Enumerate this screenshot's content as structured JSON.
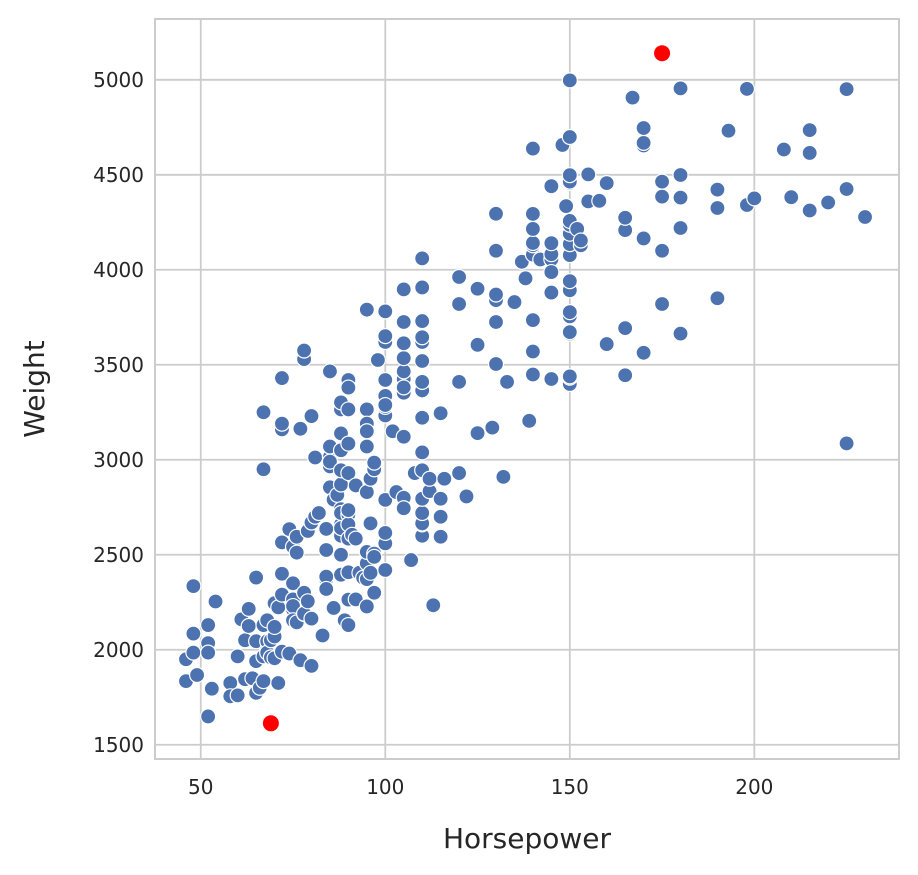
{
  "chart_data": {
    "type": "scatter",
    "xlabel": "Horsepower",
    "ylabel": "Weight",
    "xlim": [
      37.6,
      239.2
    ],
    "ylim": [
      1425,
      5320
    ],
    "x_ticks": [
      50,
      100,
      150,
      200
    ],
    "y_ticks": [
      1500,
      2000,
      2500,
      3000,
      3500,
      4000,
      4500,
      5000
    ],
    "grid": true,
    "colors": {
      "points": "#4c72b0",
      "highlight": "#ff0000",
      "grid": "#cccccc",
      "text": "#262626"
    },
    "series": [
      {
        "color": "#4c72b0",
        "points": [
          [
            46,
            1835
          ],
          [
            46,
            1950
          ],
          [
            48,
            2335
          ],
          [
            48,
            2085
          ],
          [
            48,
            1985
          ],
          [
            49,
            1867
          ],
          [
            52,
            2130
          ],
          [
            52,
            2035
          ],
          [
            52,
            1985
          ],
          [
            52,
            1649
          ],
          [
            53,
            1795
          ],
          [
            54,
            2254
          ],
          [
            58,
            1825
          ],
          [
            58,
            1755
          ],
          [
            60,
            1760
          ],
          [
            60,
            1965
          ],
          [
            61,
            2160
          ],
          [
            62,
            2050
          ],
          [
            62,
            1845
          ],
          [
            63,
            2125
          ],
          [
            63,
            2215
          ],
          [
            64,
            1850
          ],
          [
            65,
            2380
          ],
          [
            65,
            2045
          ],
          [
            65,
            1940
          ],
          [
            65,
            1773
          ],
          [
            66,
            1800
          ],
          [
            67,
            1965
          ],
          [
            67,
            1835
          ],
          [
            67,
            2130
          ],
          [
            67,
            3250
          ],
          [
            67,
            2950
          ],
          [
            68,
            2000
          ],
          [
            68,
            2045
          ],
          [
            68,
            2155
          ],
          [
            68,
            1985
          ],
          [
            69,
            2050
          ],
          [
            69,
            1960
          ],
          [
            70,
            2070
          ],
          [
            70,
            2120
          ],
          [
            70,
            2245
          ],
          [
            70,
            1955
          ],
          [
            71,
            2223
          ],
          [
            71,
            1825
          ],
          [
            72,
            3430
          ],
          [
            72,
            3160
          ],
          [
            72,
            2565
          ],
          [
            72,
            2400
          ],
          [
            72,
            2290
          ],
          [
            72,
            1990
          ],
          [
            72,
            3190
          ],
          [
            74,
            2635
          ],
          [
            74,
            1980
          ],
          [
            75,
            2212
          ],
          [
            75,
            2542
          ],
          [
            75,
            2350
          ],
          [
            75,
            2265
          ],
          [
            75,
            2230
          ],
          [
            75,
            2155
          ],
          [
            76,
            2511
          ],
          [
            76,
            2595
          ],
          [
            76,
            2144
          ],
          [
            77,
            1945
          ],
          [
            77,
            3163
          ],
          [
            78,
            2300
          ],
          [
            78,
            2188
          ],
          [
            78,
            2190
          ],
          [
            78,
            3530
          ],
          [
            78,
            3575
          ],
          [
            79,
            2255
          ],
          [
            79,
            2625
          ],
          [
            80,
            2164
          ],
          [
            80,
            2670
          ],
          [
            80,
            3230
          ],
          [
            80,
            1915
          ],
          [
            81,
            3012
          ],
          [
            81,
            2700
          ],
          [
            82,
            2720
          ],
          [
            83,
            2075
          ],
          [
            84,
            2370
          ],
          [
            84,
            2385
          ],
          [
            84,
            2525
          ],
          [
            84,
            2636
          ],
          [
            84,
            2320
          ],
          [
            85,
            2855
          ],
          [
            85,
            2965
          ],
          [
            85,
            3015
          ],
          [
            85,
            3070
          ],
          [
            85,
            2990
          ],
          [
            85,
            3465
          ],
          [
            86,
            2220
          ],
          [
            86,
            2790
          ],
          [
            87,
            2815
          ],
          [
            88,
            2500
          ],
          [
            88,
            2660
          ],
          [
            88,
            2600
          ],
          [
            88,
            2740
          ],
          [
            88,
            2870
          ],
          [
            88,
            3139
          ],
          [
            88,
            3265
          ],
          [
            88,
            3302
          ],
          [
            88,
            3050
          ],
          [
            88,
            2720
          ],
          [
            88,
            2945
          ],
          [
            88,
            2395
          ],
          [
            88,
            2640
          ],
          [
            89,
            2155
          ],
          [
            90,
            2264
          ],
          [
            90,
            2930
          ],
          [
            90,
            3085
          ],
          [
            90,
            3265
          ],
          [
            90,
            3420
          ],
          [
            90,
            3380
          ],
          [
            90,
            2711
          ],
          [
            90,
            2660
          ],
          [
            90,
            2735
          ],
          [
            90,
            2408
          ],
          [
            90,
            2130
          ],
          [
            90,
            2585
          ],
          [
            91,
            2605
          ],
          [
            92,
            2585
          ],
          [
            92,
            2265
          ],
          [
            92,
            2865
          ],
          [
            93,
            2405
          ],
          [
            94,
            2379
          ],
          [
            95,
            2455
          ],
          [
            95,
            2372
          ],
          [
            95,
            2228
          ],
          [
            95,
            2515
          ],
          [
            95,
            2830
          ],
          [
            95,
            3265
          ],
          [
            95,
            3190
          ],
          [
            95,
            3150
          ],
          [
            95,
            3070
          ],
          [
            95,
            3790
          ],
          [
            96,
            2665
          ],
          [
            96,
            2900
          ],
          [
            96,
            2405
          ],
          [
            97,
            2506
          ],
          [
            97,
            2489
          ],
          [
            97,
            2300
          ],
          [
            97,
            2950
          ],
          [
            97,
            2985
          ],
          [
            98,
            3525
          ],
          [
            100,
            2789
          ],
          [
            100,
            2560
          ],
          [
            100,
            2420
          ],
          [
            100,
            3420
          ],
          [
            100,
            3336
          ],
          [
            100,
            3233
          ],
          [
            100,
            3278
          ],
          [
            100,
            3288
          ],
          [
            100,
            3620
          ],
          [
            100,
            3651
          ],
          [
            100,
            3781
          ],
          [
            100,
            2615
          ],
          [
            102,
            3150
          ],
          [
            103,
            2830
          ],
          [
            105,
            2800
          ],
          [
            105,
            3121
          ],
          [
            105,
            3353
          ],
          [
            105,
            3425
          ],
          [
            105,
            3465
          ],
          [
            105,
            3535
          ],
          [
            105,
            3613
          ],
          [
            105,
            3725
          ],
          [
            105,
            3897
          ],
          [
            105,
            2745
          ],
          [
            105,
            3381
          ],
          [
            107,
            2472
          ],
          [
            108,
            2930
          ],
          [
            110,
            2600
          ],
          [
            110,
            2660
          ],
          [
            110,
            2665
          ],
          [
            110,
            2720
          ],
          [
            110,
            2795
          ],
          [
            110,
            2945
          ],
          [
            110,
            3039
          ],
          [
            110,
            3221
          ],
          [
            110,
            3365
          ],
          [
            110,
            3410
          ],
          [
            110,
            3520
          ],
          [
            110,
            3620
          ],
          [
            110,
            3645
          ],
          [
            110,
            3730
          ],
          [
            110,
            3907
          ],
          [
            110,
            4060
          ],
          [
            112,
            2835
          ],
          [
            112,
            2900
          ],
          [
            113,
            2234
          ],
          [
            115,
            2595
          ],
          [
            115,
            2700
          ],
          [
            115,
            2795
          ],
          [
            115,
            3245
          ],
          [
            116,
            2900
          ],
          [
            120,
            2930
          ],
          [
            120,
            3410
          ],
          [
            120,
            3820
          ],
          [
            120,
            3962
          ],
          [
            122,
            2807
          ],
          [
            125,
            3140
          ],
          [
            125,
            3605
          ],
          [
            125,
            3900
          ],
          [
            129,
            3169
          ],
          [
            130,
            3725
          ],
          [
            130,
            3840
          ],
          [
            130,
            3870
          ],
          [
            130,
            4100
          ],
          [
            130,
            4295
          ],
          [
            130,
            3504
          ],
          [
            132,
            2910
          ],
          [
            133,
            3410
          ],
          [
            135,
            3830
          ],
          [
            137,
            4042
          ],
          [
            138,
            3955
          ],
          [
            139,
            3205
          ],
          [
            140,
            3449
          ],
          [
            140,
            3570
          ],
          [
            140,
            3735
          ],
          [
            140,
            4080
          ],
          [
            140,
            4129
          ],
          [
            140,
            4141
          ],
          [
            140,
            4215
          ],
          [
            140,
            4294
          ],
          [
            140,
            4638
          ],
          [
            142,
            4054
          ],
          [
            145,
            3425
          ],
          [
            145,
            3880
          ],
          [
            145,
            4055
          ],
          [
            145,
            4082
          ],
          [
            145,
            4140
          ],
          [
            145,
            4440
          ],
          [
            145,
            3988
          ],
          [
            148,
            4657
          ],
          [
            149,
            4335
          ],
          [
            150,
            3399
          ],
          [
            150,
            3432
          ],
          [
            150,
            3439
          ],
          [
            150,
            3664
          ],
          [
            150,
            3672
          ],
          [
            150,
            3755
          ],
          [
            150,
            3777
          ],
          [
            150,
            3892
          ],
          [
            150,
            3940
          ],
          [
            150,
            4077
          ],
          [
            150,
            4135
          ],
          [
            150,
            4190
          ],
          [
            150,
            4237
          ],
          [
            150,
            4257
          ],
          [
            150,
            4457
          ],
          [
            150,
            4464
          ],
          [
            150,
            4498
          ],
          [
            150,
            4699
          ],
          [
            150,
            4997
          ],
          [
            152,
            4215
          ],
          [
            153,
            4129
          ],
          [
            153,
            4154
          ],
          [
            155,
            4360
          ],
          [
            155,
            4502
          ],
          [
            158,
            4363
          ],
          [
            160,
            3609
          ],
          [
            160,
            4456
          ],
          [
            165,
            3445
          ],
          [
            165,
            3693
          ],
          [
            165,
            4209
          ],
          [
            165,
            4274
          ],
          [
            167,
            4906
          ],
          [
            170,
            3563
          ],
          [
            170,
            4165
          ],
          [
            170,
            4654
          ],
          [
            170,
            4668
          ],
          [
            170,
            4746
          ],
          [
            175,
            3820
          ],
          [
            175,
            4100
          ],
          [
            175,
            4385
          ],
          [
            175,
            4464
          ],
          [
            180,
            3664
          ],
          [
            180,
            4220
          ],
          [
            180,
            4380
          ],
          [
            180,
            4499
          ],
          [
            180,
            4955
          ],
          [
            190,
            3850
          ],
          [
            190,
            4325
          ],
          [
            190,
            4422
          ],
          [
            193,
            4732
          ],
          [
            198,
            4341
          ],
          [
            198,
            4952
          ],
          [
            200,
            4376
          ],
          [
            208,
            4633
          ],
          [
            210,
            4382
          ],
          [
            215,
            4312
          ],
          [
            215,
            4615
          ],
          [
            215,
            4735
          ],
          [
            220,
            4354
          ],
          [
            225,
            3086
          ],
          [
            225,
            4425
          ],
          [
            225,
            4951
          ],
          [
            230,
            4278
          ]
        ]
      },
      {
        "color": "#ff0000",
        "points": [
          [
            69,
            1613
          ],
          [
            175,
            5140
          ]
        ]
      }
    ]
  }
}
